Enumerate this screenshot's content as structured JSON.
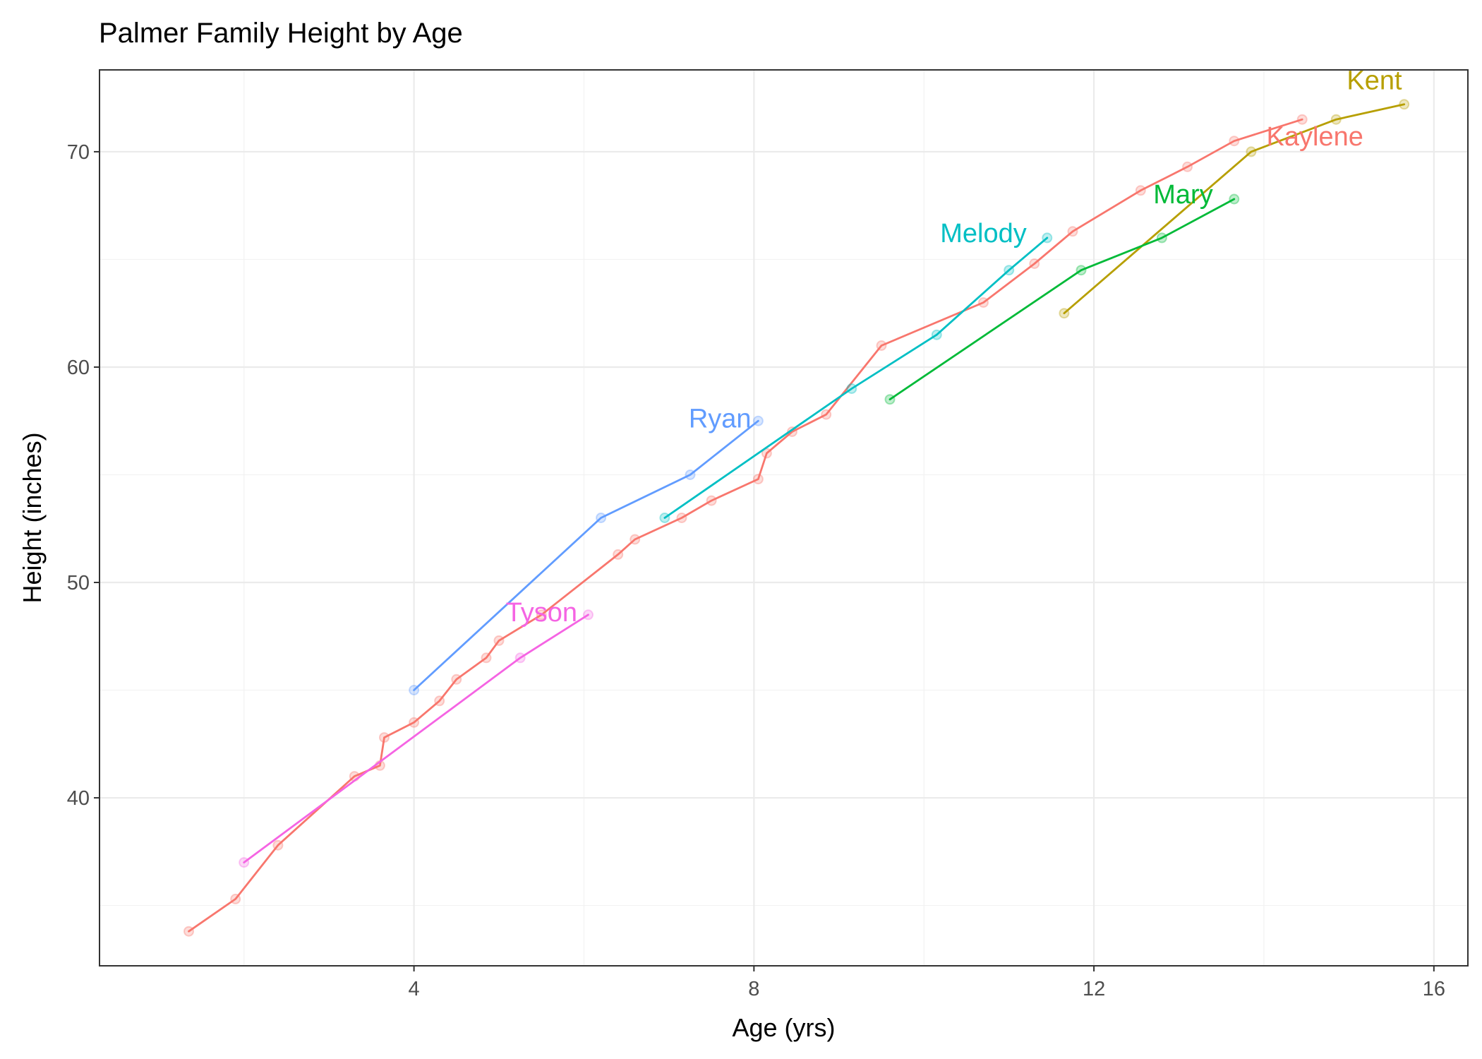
{
  "chart_data": {
    "type": "line",
    "title": "Palmer Family Height by Age",
    "xlabel": "Age (yrs)",
    "ylabel": "Height (inches)",
    "xlim": [
      0.3,
      16.4
    ],
    "ylim": [
      32.2,
      73.8
    ],
    "x_ticks": [
      4,
      8,
      12,
      16
    ],
    "x_tick_labels": [
      "4",
      "8",
      "12",
      "16"
    ],
    "y_ticks": [
      40,
      50,
      60,
      70
    ],
    "y_tick_labels": [
      "40",
      "50",
      "60",
      "70"
    ],
    "x_minor": [
      2,
      6,
      10,
      14
    ],
    "y_minor": [
      35,
      45,
      55,
      65
    ],
    "grid": true,
    "legend": "none (series labelled directly at line ends)",
    "series": [
      {
        "name": "Kaylene",
        "color": "#F8766D",
        "points": [
          [
            1.35,
            33.8
          ],
          [
            1.9,
            35.3
          ],
          [
            2.4,
            37.8
          ],
          [
            3.3,
            41.0
          ],
          [
            3.6,
            41.5
          ],
          [
            3.65,
            42.8
          ],
          [
            4.0,
            43.5
          ],
          [
            4.3,
            44.5
          ],
          [
            4.5,
            45.5
          ],
          [
            4.85,
            46.5
          ],
          [
            5.0,
            47.3
          ],
          [
            5.5,
            48.5
          ],
          [
            6.4,
            51.3
          ],
          [
            6.6,
            52.0
          ],
          [
            7.15,
            53.0
          ],
          [
            7.5,
            53.8
          ],
          [
            8.05,
            54.8
          ],
          [
            8.15,
            56.0
          ],
          [
            8.45,
            57.0
          ],
          [
            8.85,
            57.8
          ],
          [
            9.5,
            61.0
          ],
          [
            10.7,
            63.0
          ],
          [
            11.3,
            64.8
          ],
          [
            11.75,
            66.3
          ],
          [
            12.55,
            68.2
          ],
          [
            13.1,
            69.3
          ],
          [
            13.65,
            70.5
          ],
          [
            14.45,
            71.5
          ]
        ]
      },
      {
        "name": "Kent",
        "color": "#B79F00",
        "points": [
          [
            11.65,
            62.5
          ],
          [
            13.85,
            70.0
          ],
          [
            14.85,
            71.5
          ],
          [
            15.65,
            72.2
          ]
        ]
      },
      {
        "name": "Mary",
        "color": "#00BA38",
        "points": [
          [
            9.6,
            58.5
          ],
          [
            11.85,
            64.5
          ],
          [
            12.8,
            66.0
          ],
          [
            13.65,
            67.8
          ]
        ]
      },
      {
        "name": "Melody",
        "color": "#00BFC4",
        "points": [
          [
            6.95,
            53.0
          ],
          [
            9.15,
            59.0
          ],
          [
            10.15,
            61.5
          ],
          [
            11.0,
            64.5
          ],
          [
            11.45,
            66.0
          ]
        ]
      },
      {
        "name": "Ryan",
        "color": "#619CFF",
        "points": [
          [
            4.0,
            45.0
          ],
          [
            6.2,
            53.0
          ],
          [
            7.25,
            55.0
          ],
          [
            8.05,
            57.5
          ]
        ]
      },
      {
        "name": "Tyson",
        "color": "#F564E3",
        "points": [
          [
            2.0,
            37.0
          ],
          [
            5.25,
            46.5
          ],
          [
            6.05,
            48.5
          ]
        ]
      }
    ],
    "labels": [
      {
        "text": "Kaylene",
        "series": "Kaylene",
        "x": 14.6,
        "y": 70.3,
        "anchor": "middle"
      },
      {
        "text": "Kent",
        "series": "Kent",
        "x": 15.3,
        "y": 72.9,
        "anchor": "middle"
      },
      {
        "text": "Mary",
        "series": "Mary",
        "x": 13.05,
        "y": 67.6,
        "anchor": "middle"
      },
      {
        "text": "Melody",
        "series": "Melody",
        "x": 10.7,
        "y": 65.8,
        "anchor": "middle"
      },
      {
        "text": "Ryan",
        "series": "Ryan",
        "x": 7.6,
        "y": 57.2,
        "anchor": "middle"
      },
      {
        "text": "Tyson",
        "series": "Tyson",
        "x": 5.5,
        "y": 48.2,
        "anchor": "middle"
      }
    ]
  }
}
